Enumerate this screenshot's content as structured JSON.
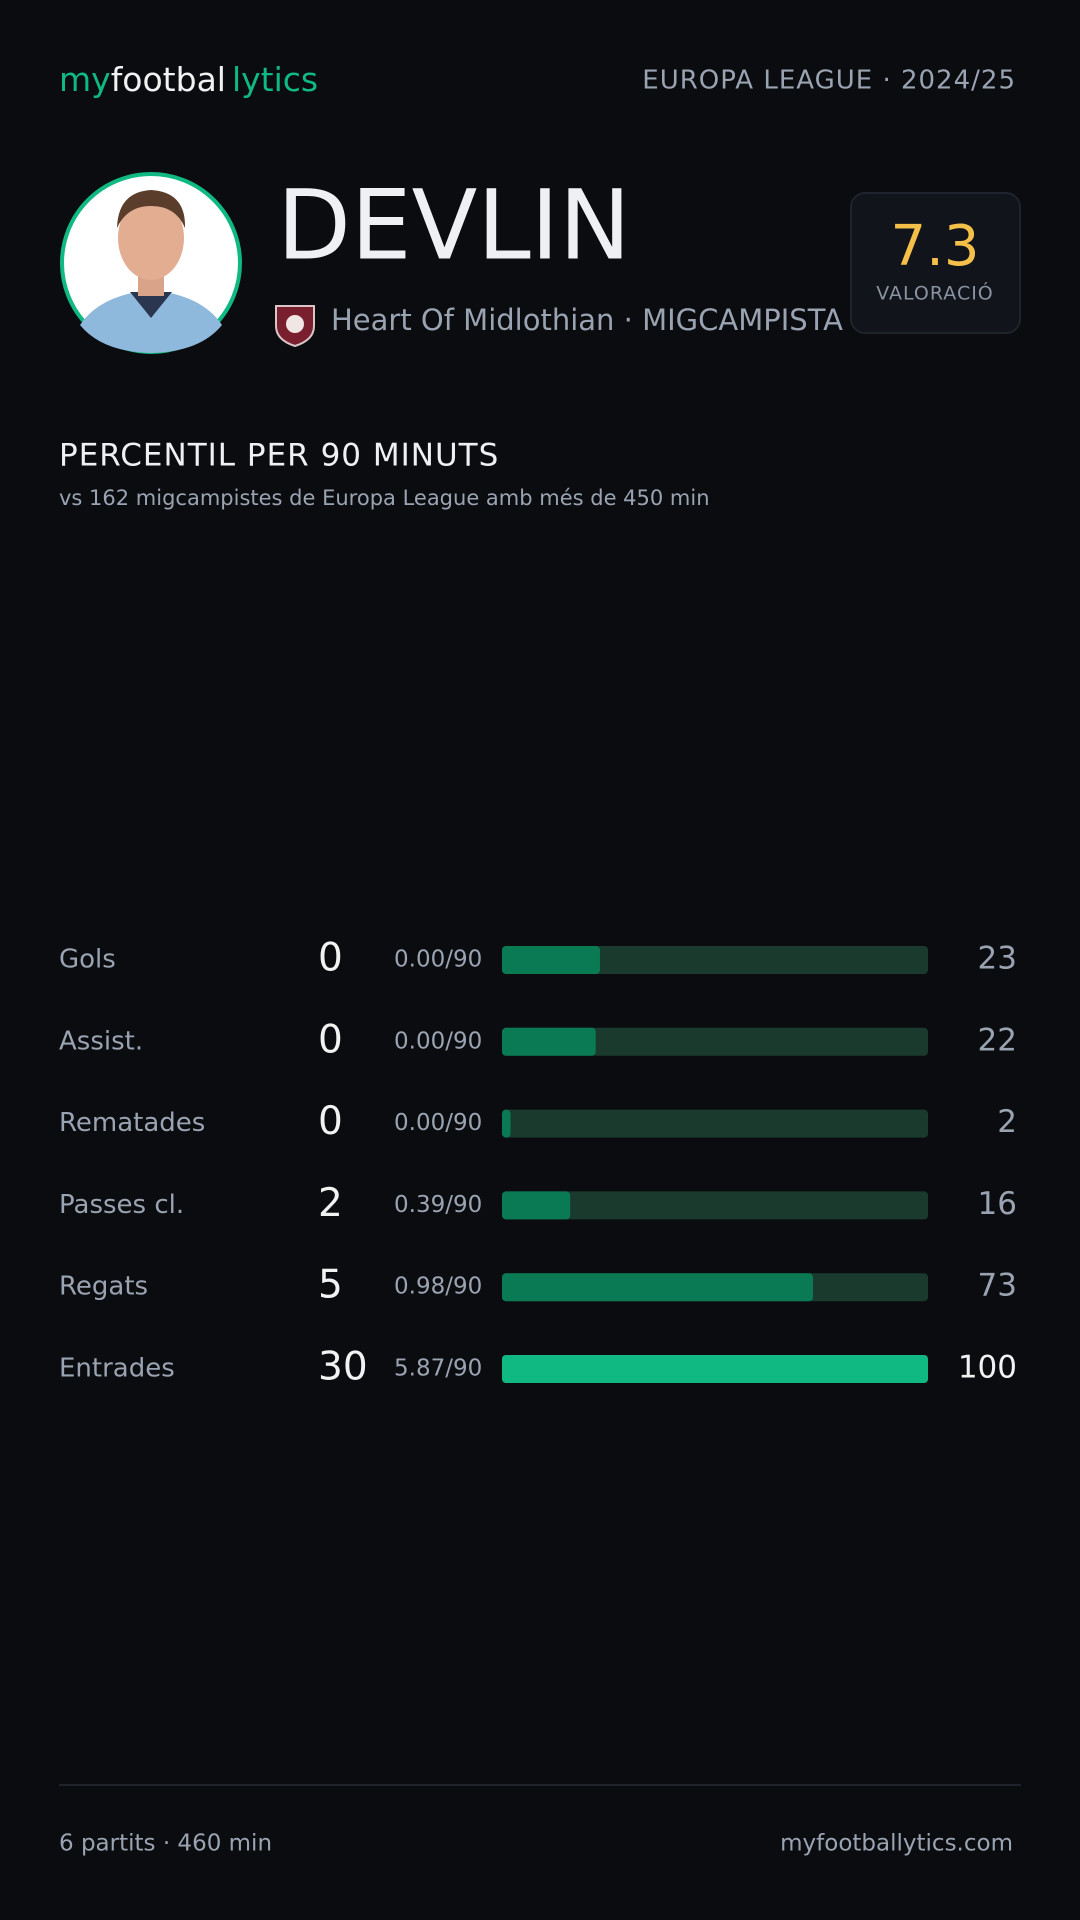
{
  "brand": {
    "part1": "my",
    "part2": "footbal",
    "part3": "lytics"
  },
  "competition": "EUROPA LEAGUE · 2024/25",
  "player": {
    "name": "DEVLIN",
    "team_line": "Heart Of Midlothian · MIGCAMPISTA",
    "rating": 7.3,
    "rating_label": "VALORACIÓ"
  },
  "chart_data": {
    "type": "bar",
    "title": "PERCENTIL PER 90 MINUTS",
    "subtitle": "vs 162 migcampistes de Europa League amb més de 450 min",
    "xlim": [
      0,
      100
    ],
    "rows": [
      {
        "label": "Gols",
        "total": 0,
        "per90": "0.00/90",
        "percentile": 23,
        "color": "#0a7a55"
      },
      {
        "label": "Assist.",
        "total": 0,
        "per90": "0.00/90",
        "percentile": 22,
        "color": "#0a7a55"
      },
      {
        "label": "Rematades",
        "total": 0,
        "per90": "0.00/90",
        "percentile": 2,
        "color": "#0a7a55"
      },
      {
        "label": "Passes cl.",
        "total": 2,
        "per90": "0.39/90",
        "percentile": 16,
        "color": "#0a7a55"
      },
      {
        "label": "Regats",
        "total": 5,
        "per90": "0.98/90",
        "percentile": 73,
        "color": "#0a7a55"
      },
      {
        "label": "Entrades",
        "total": 30,
        "per90": "5.87/90",
        "percentile": 100,
        "color": "#10b981"
      }
    ]
  },
  "footer": {
    "left": "6 partits · 460 min",
    "right": "myfootballytics.com"
  }
}
